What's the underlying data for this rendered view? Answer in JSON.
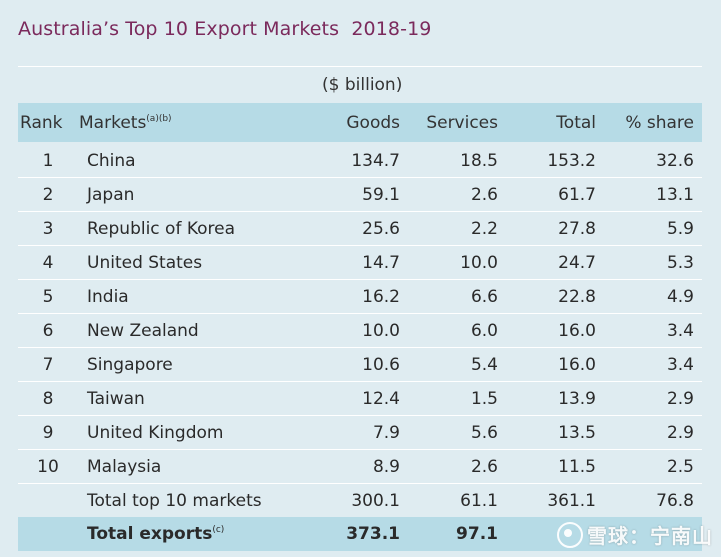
{
  "title": "Australia’s Top 10 Export Markets  2018-19",
  "unit": "($ billion)",
  "headers": {
    "rank": "Rank",
    "markets": "Markets",
    "markets_sup": "(a)(b)",
    "goods": "Goods",
    "services": "Services",
    "total": "Total",
    "share": "% share"
  },
  "rows": [
    {
      "rank": "1",
      "market": "China",
      "goods": "134.7",
      "services": "18.5",
      "total": "153.2",
      "share": "32.6"
    },
    {
      "rank": "2",
      "market": "Japan",
      "goods": "59.1",
      "services": "2.6",
      "total": "61.7",
      "share": "13.1"
    },
    {
      "rank": "3",
      "market": "Republic of Korea",
      "goods": "25.6",
      "services": "2.2",
      "total": "27.8",
      "share": "5.9"
    },
    {
      "rank": "4",
      "market": "United States",
      "goods": "14.7",
      "services": "10.0",
      "total": "24.7",
      "share": "5.3"
    },
    {
      "rank": "5",
      "market": "India",
      "goods": "16.2",
      "services": "6.6",
      "total": "22.8",
      "share": "4.9"
    },
    {
      "rank": "6",
      "market": "New Zealand",
      "goods": "10.0",
      "services": "6.0",
      "total": "16.0",
      "share": "3.4"
    },
    {
      "rank": "7",
      "market": "Singapore",
      "goods": "10.6",
      "services": "5.4",
      "total": "16.0",
      "share": "3.4"
    },
    {
      "rank": "8",
      "market": "Taiwan",
      "goods": "12.4",
      "services": "1.5",
      "total": "13.9",
      "share": "2.9"
    },
    {
      "rank": "9",
      "market": "United Kingdom",
      "goods": "7.9",
      "services": "5.6",
      "total": "13.5",
      "share": "2.9"
    },
    {
      "rank": "10",
      "market": "Malaysia",
      "goods": "8.9",
      "services": "2.6",
      "total": "11.5",
      "share": "2.5"
    }
  ],
  "subtotal": {
    "label": "Total top 10 markets",
    "goods": "300.1",
    "services": "61.1",
    "total": "361.1",
    "share": "76.8"
  },
  "grand_total": {
    "label": "Total exports",
    "label_sup": "(c)",
    "goods": "373.1",
    "services": "97.1",
    "total": "",
    "share": ""
  },
  "watermark": {
    "icon": "snowball-logo-icon",
    "text": "雪球：宁南山"
  },
  "colors": {
    "title": "#7b2a5c",
    "header_bg": "#b6dbe6",
    "page_bg": "#dfecf1"
  }
}
